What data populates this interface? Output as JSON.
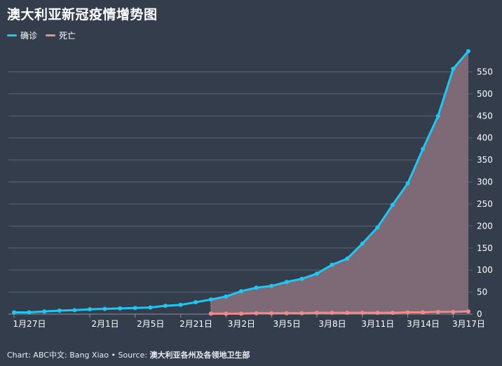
{
  "title": "澳大利亚新冠疫情增势图",
  "footer": {
    "credit": "Chart: ABC中文: Bang Xiao • Source: ",
    "source": "澳大利亚各州及各领地卫生部"
  },
  "colors": {
    "background": "#333d4c",
    "confirmed": "#1ec8f5",
    "deaths": "#f28a8a",
    "area_fill": "#7d6a76",
    "grid": "#5a6473",
    "axis_text": "#ffffff"
  },
  "chart_data": {
    "type": "line",
    "title": "澳大利亚新冠疫情增势图",
    "xlabel": "",
    "ylabel": "",
    "legend": "top-left",
    "grid": true,
    "ylim": [
      0,
      600
    ],
    "yticks": [
      0,
      50,
      100,
      150,
      200,
      250,
      300,
      350,
      400,
      450,
      500,
      550
    ],
    "x_tick_labels": [
      {
        "index": 0,
        "label": "1月27日"
      },
      {
        "index": 5,
        "label": "2月1日"
      },
      {
        "index": 8,
        "label": "2月5日"
      },
      {
        "index": 11,
        "label": "2月21日"
      },
      {
        "index": 14,
        "label": "3月2日"
      },
      {
        "index": 17,
        "label": "3月5日"
      },
      {
        "index": 20,
        "label": "3月8日"
      },
      {
        "index": 23,
        "label": "3月11日"
      },
      {
        "index": 26,
        "label": "3月14日"
      },
      {
        "index": 29,
        "label": "3月17日"
      }
    ],
    "series": [
      {
        "name": "确诊",
        "start_index": 0,
        "values": [
          4,
          4,
          6,
          8,
          9,
          11,
          12,
          13,
          14,
          15,
          19,
          21,
          27,
          33,
          40,
          52,
          60,
          64,
          73,
          80,
          92,
          112,
          126,
          160,
          197,
          248,
          297,
          375,
          450,
          557,
          597
        ]
      },
      {
        "name": "死亡",
        "start_index": 13,
        "values": [
          1,
          1,
          1,
          2,
          2,
          2,
          2,
          3,
          3,
          3,
          3,
          3,
          3,
          4,
          4,
          5,
          5,
          6
        ]
      }
    ]
  }
}
